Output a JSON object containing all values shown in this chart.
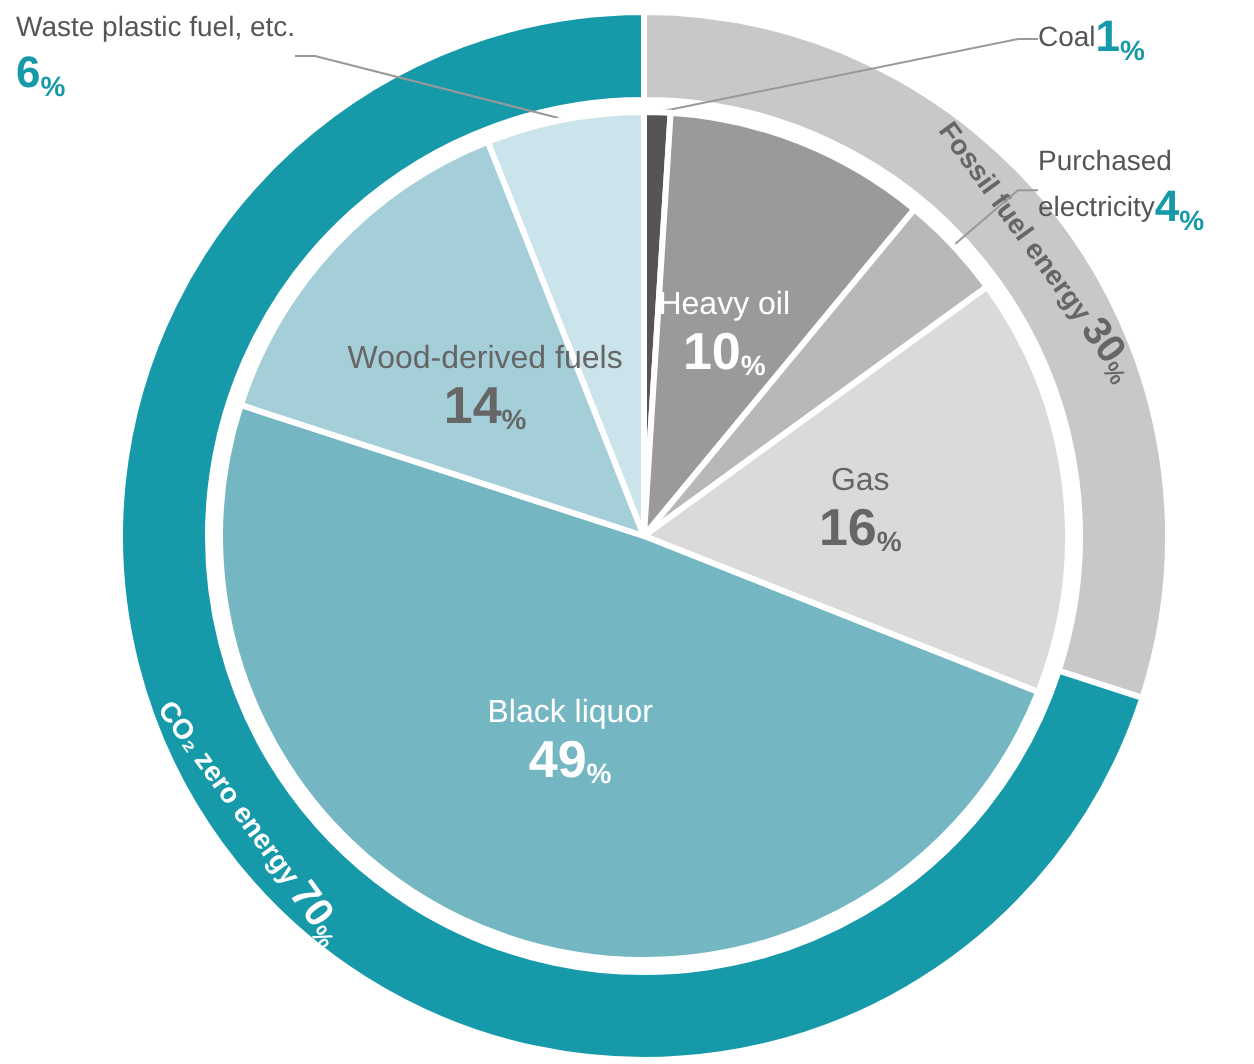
{
  "chart_data": [
    {
      "type": "pie",
      "categories": [
        "Coal",
        "Heavy oil",
        "Purchased electricity",
        "Gas",
        "Black liquor",
        "Wood-derived fuels",
        "Waste plastic fuel, etc."
      ],
      "values": [
        1,
        10,
        4,
        16,
        49,
        14,
        6
      ],
      "value_labels": [
        "1%",
        "10%",
        "4%",
        "16%",
        "49%",
        "14%",
        "6%"
      ],
      "colors": [
        "#555555",
        "#9a9a9a",
        "#b8b8b8",
        "#dadada",
        "#74b6c2",
        "#a4cfd8",
        "#cbe3ea"
      ]
    },
    {
      "type": "donut",
      "categories": [
        "Fossil fuel energy",
        "CO₂ zero energy"
      ],
      "values": [
        30,
        70
      ],
      "value_labels": [
        "30%",
        "70%"
      ],
      "colors": [
        "#c8c8c8",
        "#1699a8"
      ]
    }
  ]
}
